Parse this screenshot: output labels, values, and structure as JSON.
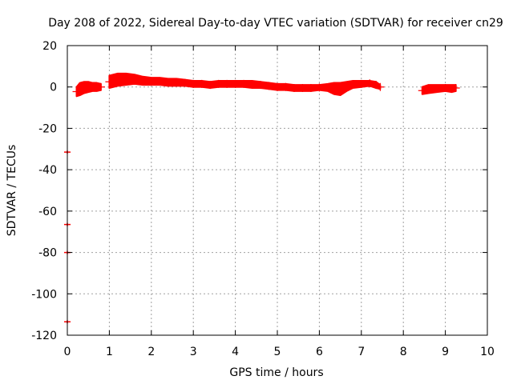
{
  "chart_data": {
    "type": "scatter",
    "title": "Day 208 of 2022, Sidereal Day-to-day VTEC variation (SDTVAR) for receiver cn29",
    "xlabel": "GPS time / hours",
    "ylabel": "SDTVAR / TECUs",
    "xlim": [
      0,
      10
    ],
    "ylim": [
      -120,
      20
    ],
    "x_ticks": [
      0,
      1,
      2,
      3,
      4,
      5,
      6,
      7,
      8,
      9,
      10
    ],
    "y_ticks": [
      -120,
      -100,
      -80,
      -60,
      -40,
      -20,
      0,
      20
    ],
    "grid": true,
    "marker_color": "#ff0000",
    "series": [
      {
        "name": "SDTVAR",
        "bands": [
          {
            "x": [
              0.22,
              0.3,
              0.4,
              0.5,
              0.6,
              0.7,
              0.8
            ],
            "lower": [
              -4.5,
              -4,
              -3,
              -2.5,
              -2,
              -2,
              -1.5
            ],
            "upper": [
              0,
              2,
              2.5,
              2.5,
              2,
              2,
              1.5
            ]
          },
          {
            "x": [
              1.0,
              1.2,
              1.4,
              1.6,
              1.8,
              2.0,
              2.2,
              2.4,
              2.6,
              2.8,
              3.0,
              3.2,
              3.4,
              3.6,
              3.8,
              4.0,
              4.2,
              4.4,
              4.6,
              4.8,
              5.0,
              5.2,
              5.4,
              5.6,
              5.8,
              6.0,
              6.2,
              6.35,
              6.5,
              6.65,
              6.8,
              7.0,
              7.2,
              7.35,
              7.45
            ],
            "lower": [
              -0.5,
              0.5,
              1,
              1.5,
              1,
              1,
              1,
              0.5,
              0.5,
              0.5,
              0,
              0,
              -0.5,
              0,
              0,
              0,
              0,
              -0.5,
              -0.5,
              -1,
              -1.5,
              -1.5,
              -2,
              -2,
              -2,
              -1.5,
              -2,
              -3.5,
              -4,
              -2,
              -0.5,
              0,
              0.5,
              -0.5,
              -1
            ],
            "upper": [
              5.5,
              6.5,
              6.5,
              6,
              5,
              4.5,
              4.5,
              4,
              4,
              3.5,
              3,
              3,
              2.5,
              3,
              3,
              3,
              3,
              3,
              2.5,
              2,
              1.5,
              1.5,
              1,
              1,
              1,
              1,
              1.5,
              2,
              2,
              2.5,
              3,
              3,
              3,
              2.5,
              1
            ]
          },
          {
            "x": [
              8.45,
              8.6,
              8.8,
              9.0,
              9.15,
              9.25
            ],
            "lower": [
              -3.5,
              -3,
              -2.5,
              -2,
              -2.5,
              -2
            ],
            "upper": [
              0,
              1,
              1,
              1,
              1,
              1
            ]
          }
        ],
        "outliers": [
          {
            "x": 0.0,
            "y": -31.5
          },
          {
            "x": 0.0,
            "y": -66.5
          },
          {
            "x": 0.0,
            "y": -80.0
          },
          {
            "x": 0.0,
            "y": -113.5
          }
        ]
      }
    ]
  }
}
